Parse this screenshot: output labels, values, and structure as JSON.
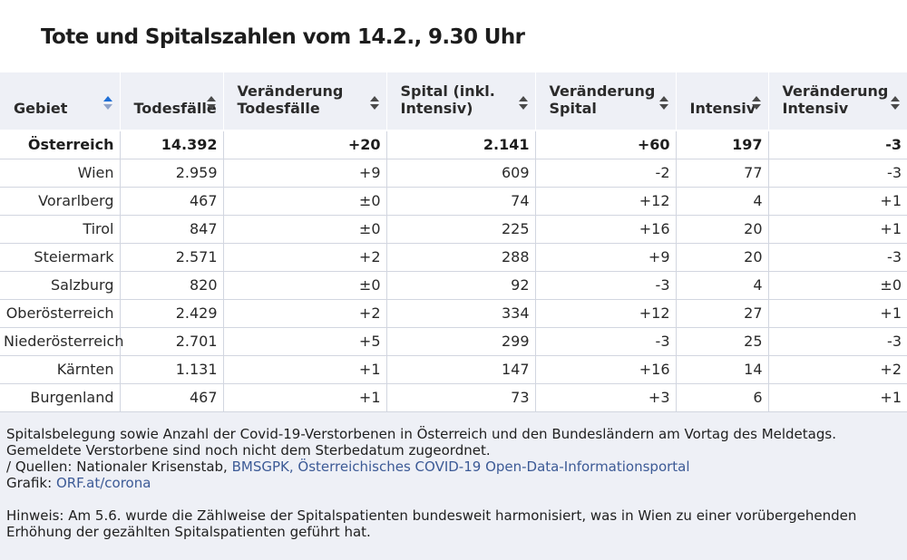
{
  "title": "Tote und Spitalszahlen vom 14.2., 9.30 Uhr",
  "chart_data": {
    "type": "table",
    "columns": [
      {
        "label": "Gebiet",
        "sort": "active"
      },
      {
        "label": "Todesfälle",
        "sort": "none"
      },
      {
        "label": "Veränderung Todesfälle",
        "sort": "none"
      },
      {
        "label": "Spital (inkl. Intensiv)",
        "sort": "none"
      },
      {
        "label": "Veränderung Spital",
        "sort": "none"
      },
      {
        "label": "Intensiv",
        "sort": "none"
      },
      {
        "label": "Veränderung Intensiv",
        "sort": "none"
      }
    ],
    "rows": [
      [
        "Österreich",
        "14.392",
        "+20",
        "2.141",
        "+60",
        "197",
        "-3"
      ],
      [
        "Wien",
        "2.959",
        "+9",
        "609",
        "-2",
        "77",
        "-3"
      ],
      [
        "Vorarlberg",
        "467",
        "±0",
        "74",
        "+12",
        "4",
        "+1"
      ],
      [
        "Tirol",
        "847",
        "±0",
        "225",
        "+16",
        "20",
        "+1"
      ],
      [
        "Steiermark",
        "2.571",
        "+2",
        "288",
        "+9",
        "20",
        "-3"
      ],
      [
        "Salzburg",
        "820",
        "±0",
        "92",
        "-3",
        "4",
        "±0"
      ],
      [
        "Oberösterreich",
        "2.429",
        "+2",
        "334",
        "+12",
        "27",
        "+1"
      ],
      [
        "Niederösterreich",
        "2.701",
        "+5",
        "299",
        "-3",
        "25",
        "-3"
      ],
      [
        "Kärnten",
        "1.131",
        "+1",
        "147",
        "+16",
        "14",
        "+2"
      ],
      [
        "Burgenland",
        "467",
        "+1",
        "73",
        "+3",
        "6",
        "+1"
      ]
    ],
    "bold_rows": [
      0
    ]
  },
  "footer": {
    "description": "Spitalsbelegung sowie Anzahl der Covid-19-Verstorbenen in Österreich und den Bundesländern am Vortag des Meldetags. Gemeldete Verstorbene sind noch nicht dem Sterbedatum zugeordnet.",
    "sources_prefix": "/ Quellen: Nationaler Krisenstab, ",
    "sources_link": "BMSGPK, Österreichisches COVID-19 Open-Data-Informationsportal",
    "grafik_prefix": "Grafik: ",
    "grafik_link": "ORF.at/corona",
    "note": "Hinweis: Am 5.6. wurde die Zählweise der Spitalspatienten bundesweit harmonisiert, was in Wien zu einer vorübergehenden Erhöhung der gezählten Spitalspatienten geführt hat."
  },
  "colors": {
    "header_bg": "#eef0f6",
    "link": "#3c5a96",
    "sort_active": "#1f6fd6"
  }
}
